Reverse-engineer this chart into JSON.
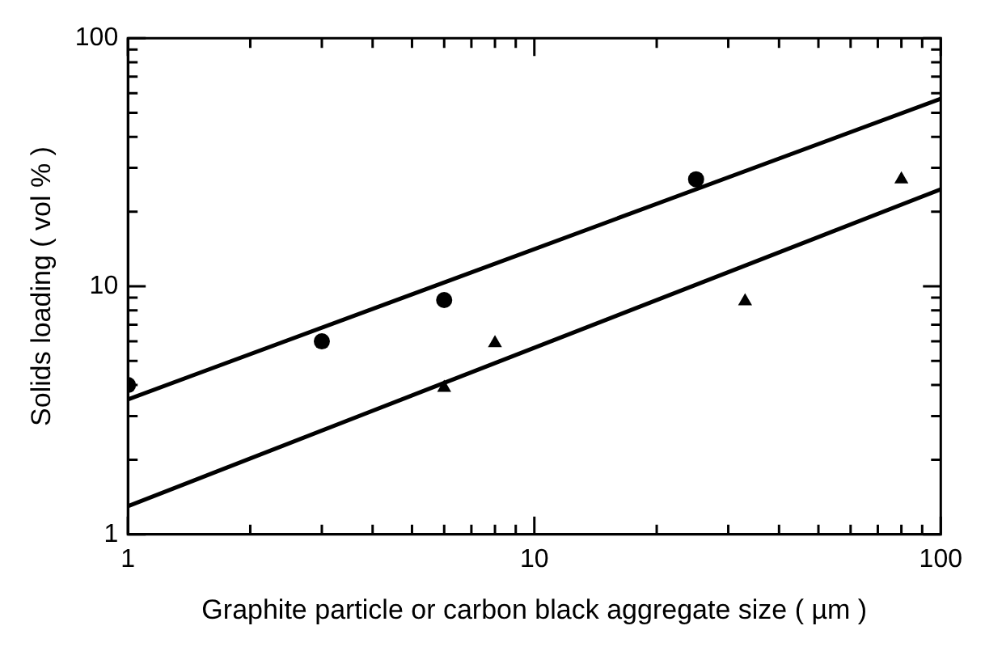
{
  "chart_data": {
    "type": "scatter",
    "xlabel": "Graphite particle or carbon black aggregate size ( µm )",
    "ylabel": "Solids loading ( vol % )",
    "log": "xy",
    "grid": false,
    "legend": false,
    "xlim": [
      1,
      100
    ],
    "ylim": [
      1,
      100
    ],
    "xticks": [
      1,
      {
        "value": 2,
        "label": null
      },
      {
        "value": 3,
        "label": null
      },
      {
        "value": 4,
        "label": null
      },
      {
        "value": 5,
        "label": null
      },
      {
        "value": 6,
        "label": null
      },
      {
        "value": 7,
        "label": null
      },
      {
        "value": 8,
        "label": null
      },
      {
        "value": 9,
        "label": null
      },
      10,
      {
        "value": 20,
        "label": null
      },
      {
        "value": 30,
        "label": null
      },
      {
        "value": 40,
        "label": null
      },
      {
        "value": 50,
        "label": null
      },
      {
        "value": 60,
        "label": null
      },
      {
        "value": 70,
        "label": null
      },
      {
        "value": 80,
        "label": null
      },
      {
        "value": 90,
        "label": null
      },
      100
    ],
    "yticks": [
      1,
      {
        "value": 2,
        "label": null
      },
      {
        "value": 3,
        "label": null
      },
      {
        "value": 4,
        "label": null
      },
      {
        "value": 5,
        "label": null
      },
      {
        "value": 6,
        "label": null
      },
      {
        "value": 7,
        "label": null
      },
      {
        "value": 8,
        "label": null
      },
      {
        "value": 9,
        "label": null
      },
      10,
      {
        "value": 20,
        "label": null
      },
      {
        "value": 30,
        "label": null
      },
      {
        "value": 40,
        "label": null
      },
      {
        "value": 50,
        "label": null
      },
      {
        "value": 60,
        "label": null
      },
      {
        "value": 70,
        "label": null
      },
      {
        "value": 80,
        "label": null
      },
      {
        "value": 90,
        "label": null
      },
      100
    ],
    "series": [
      {
        "marker": "circle",
        "color": "#000000",
        "x": [
          1,
          3,
          6,
          25
        ],
        "values": [
          4,
          6,
          8.8,
          27
        ]
      },
      {
        "marker": "triangle",
        "color": "#000000",
        "x": [
          6,
          8,
          33,
          80
        ],
        "values": [
          3.9,
          5.9,
          8.7,
          27
        ]
      },
      {
        "type": "line",
        "marker": "none",
        "color": "#000000",
        "line_style": "solid",
        "x": [
          1,
          100
        ],
        "values": [
          3.5,
          57
        ]
      },
      {
        "type": "line",
        "marker": "none",
        "color": "#000000",
        "line_style": "solid",
        "x": [
          1,
          100
        ],
        "values": [
          1.3,
          24.6
        ]
      }
    ]
  }
}
